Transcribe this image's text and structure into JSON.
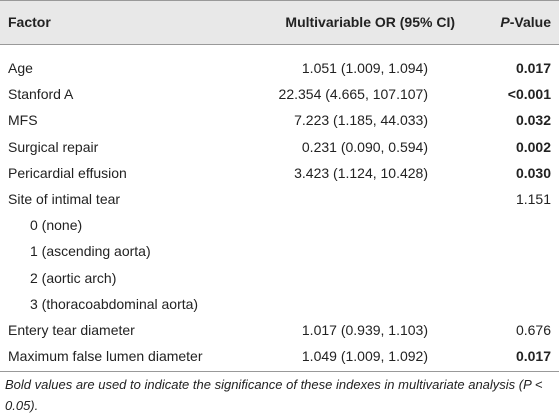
{
  "table": {
    "header": {
      "factor": "Factor",
      "or": "Multivariable OR (95% CI)",
      "p_italic": "P",
      "p_rest": "-Value"
    },
    "rows": [
      {
        "factor": "Age",
        "or": "1.051 (1.009, 1.094)",
        "p": "0.017",
        "p_bold": true
      },
      {
        "factor": "Stanford A",
        "or": "22.354 (4.665, 107.107)",
        "p": "<0.001",
        "p_bold": true
      },
      {
        "factor": "MFS",
        "or": "7.223 (1.185, 44.033)",
        "p": "0.032",
        "p_bold": true
      },
      {
        "factor": "Surgical repair",
        "or": "0.231 (0.090, 0.594)",
        "p": "0.002",
        "p_bold": true
      },
      {
        "factor": "Pericardial effusion",
        "or": "3.423 (1.124, 10.428)",
        "p": "0.030",
        "p_bold": true
      },
      {
        "factor": "Site of intimal tear",
        "p": "1.151",
        "p_bold": false
      },
      {
        "factor": "0 (none)",
        "indent": true
      },
      {
        "factor": "1 (ascending aorta)",
        "indent": true
      },
      {
        "factor": "2 (aortic arch)",
        "indent": true
      },
      {
        "factor": "3 (thoracoabdominal aorta)",
        "indent": true
      },
      {
        "factor": "Entery tear diameter",
        "or": "1.017 (0.939, 1.103)",
        "p": "0.676",
        "p_bold": false
      },
      {
        "factor": "Maximum false lumen diameter",
        "or": "1.049 (1.009, 1.092)",
        "p": "0.017",
        "p_bold": true
      }
    ],
    "footnote": "Bold values are used to indicate the significance of these indexes in multivariate analysis (P < 0.05)."
  }
}
